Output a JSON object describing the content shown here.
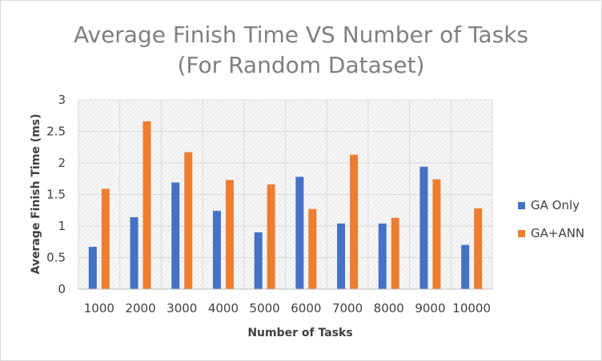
{
  "chart_data": {
    "type": "bar",
    "title_lines": [
      "Average Finish Time VS Number of Tasks",
      "(For Random Dataset)"
    ],
    "xlabel": "Number of Tasks",
    "ylabel": "Average Finish Time  (ms)",
    "categories": [
      "1000",
      "2000",
      "3000",
      "4000",
      "5000",
      "6000",
      "7000",
      "8000",
      "9000",
      "10000"
    ],
    "ylim": [
      0,
      3
    ],
    "yticks": [
      "0",
      "0.5",
      "1",
      "1.5",
      "2",
      "2.5",
      "3"
    ],
    "ytick_values": [
      0,
      0.5,
      1,
      1.5,
      2,
      2.5,
      3
    ],
    "grid": true,
    "legend_position": "right",
    "series": [
      {
        "name": "GA Only",
        "color": "#4472c4",
        "values": [
          0.67,
          1.14,
          1.69,
          1.24,
          0.9,
          1.78,
          1.04,
          1.04,
          1.94,
          0.7
        ]
      },
      {
        "name": "GA+ANN",
        "color": "#ed7d31",
        "values": [
          1.59,
          2.66,
          2.17,
          1.73,
          1.66,
          1.27,
          2.13,
          1.13,
          1.74,
          1.28
        ]
      }
    ]
  }
}
